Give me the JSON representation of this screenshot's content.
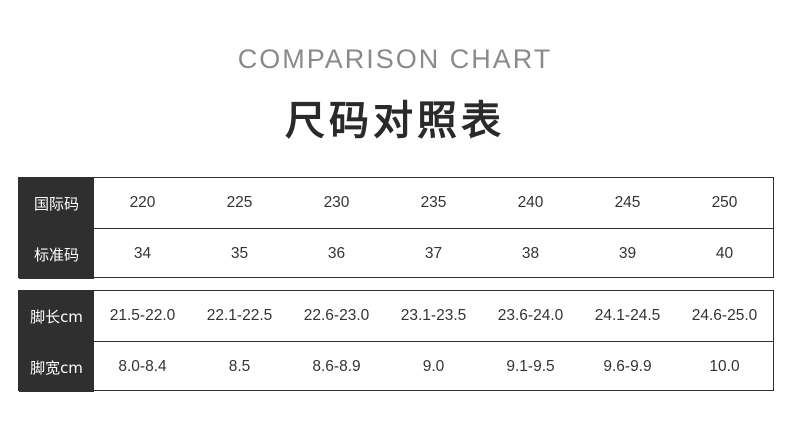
{
  "header": {
    "subtitle": "COMPARISON CHART",
    "title": "尺码对照表"
  },
  "table1": {
    "rows": [
      {
        "label": "国际码",
        "values": [
          "220",
          "225",
          "230",
          "235",
          "240",
          "245",
          "250"
        ]
      },
      {
        "label": "标准码",
        "values": [
          "34",
          "35",
          "36",
          "37",
          "38",
          "39",
          "40"
        ]
      }
    ]
  },
  "table2": {
    "rows": [
      {
        "label": "脚长cm",
        "values": [
          "21.5-22.0",
          "22.1-22.5",
          "22.6-23.0",
          "23.1-23.5",
          "23.6-24.0",
          "24.1-24.5",
          "24.6-25.0"
        ]
      },
      {
        "label": "脚宽cm",
        "values": [
          "8.0-8.4",
          "8.5",
          "8.6-8.9",
          "9.0",
          "9.1-9.5",
          "9.6-9.9",
          "10.0"
        ]
      }
    ]
  },
  "colors": {
    "header_bg": "#2f2f2f",
    "header_text": "#ffffff",
    "subtitle": "#8a8a8a"
  }
}
